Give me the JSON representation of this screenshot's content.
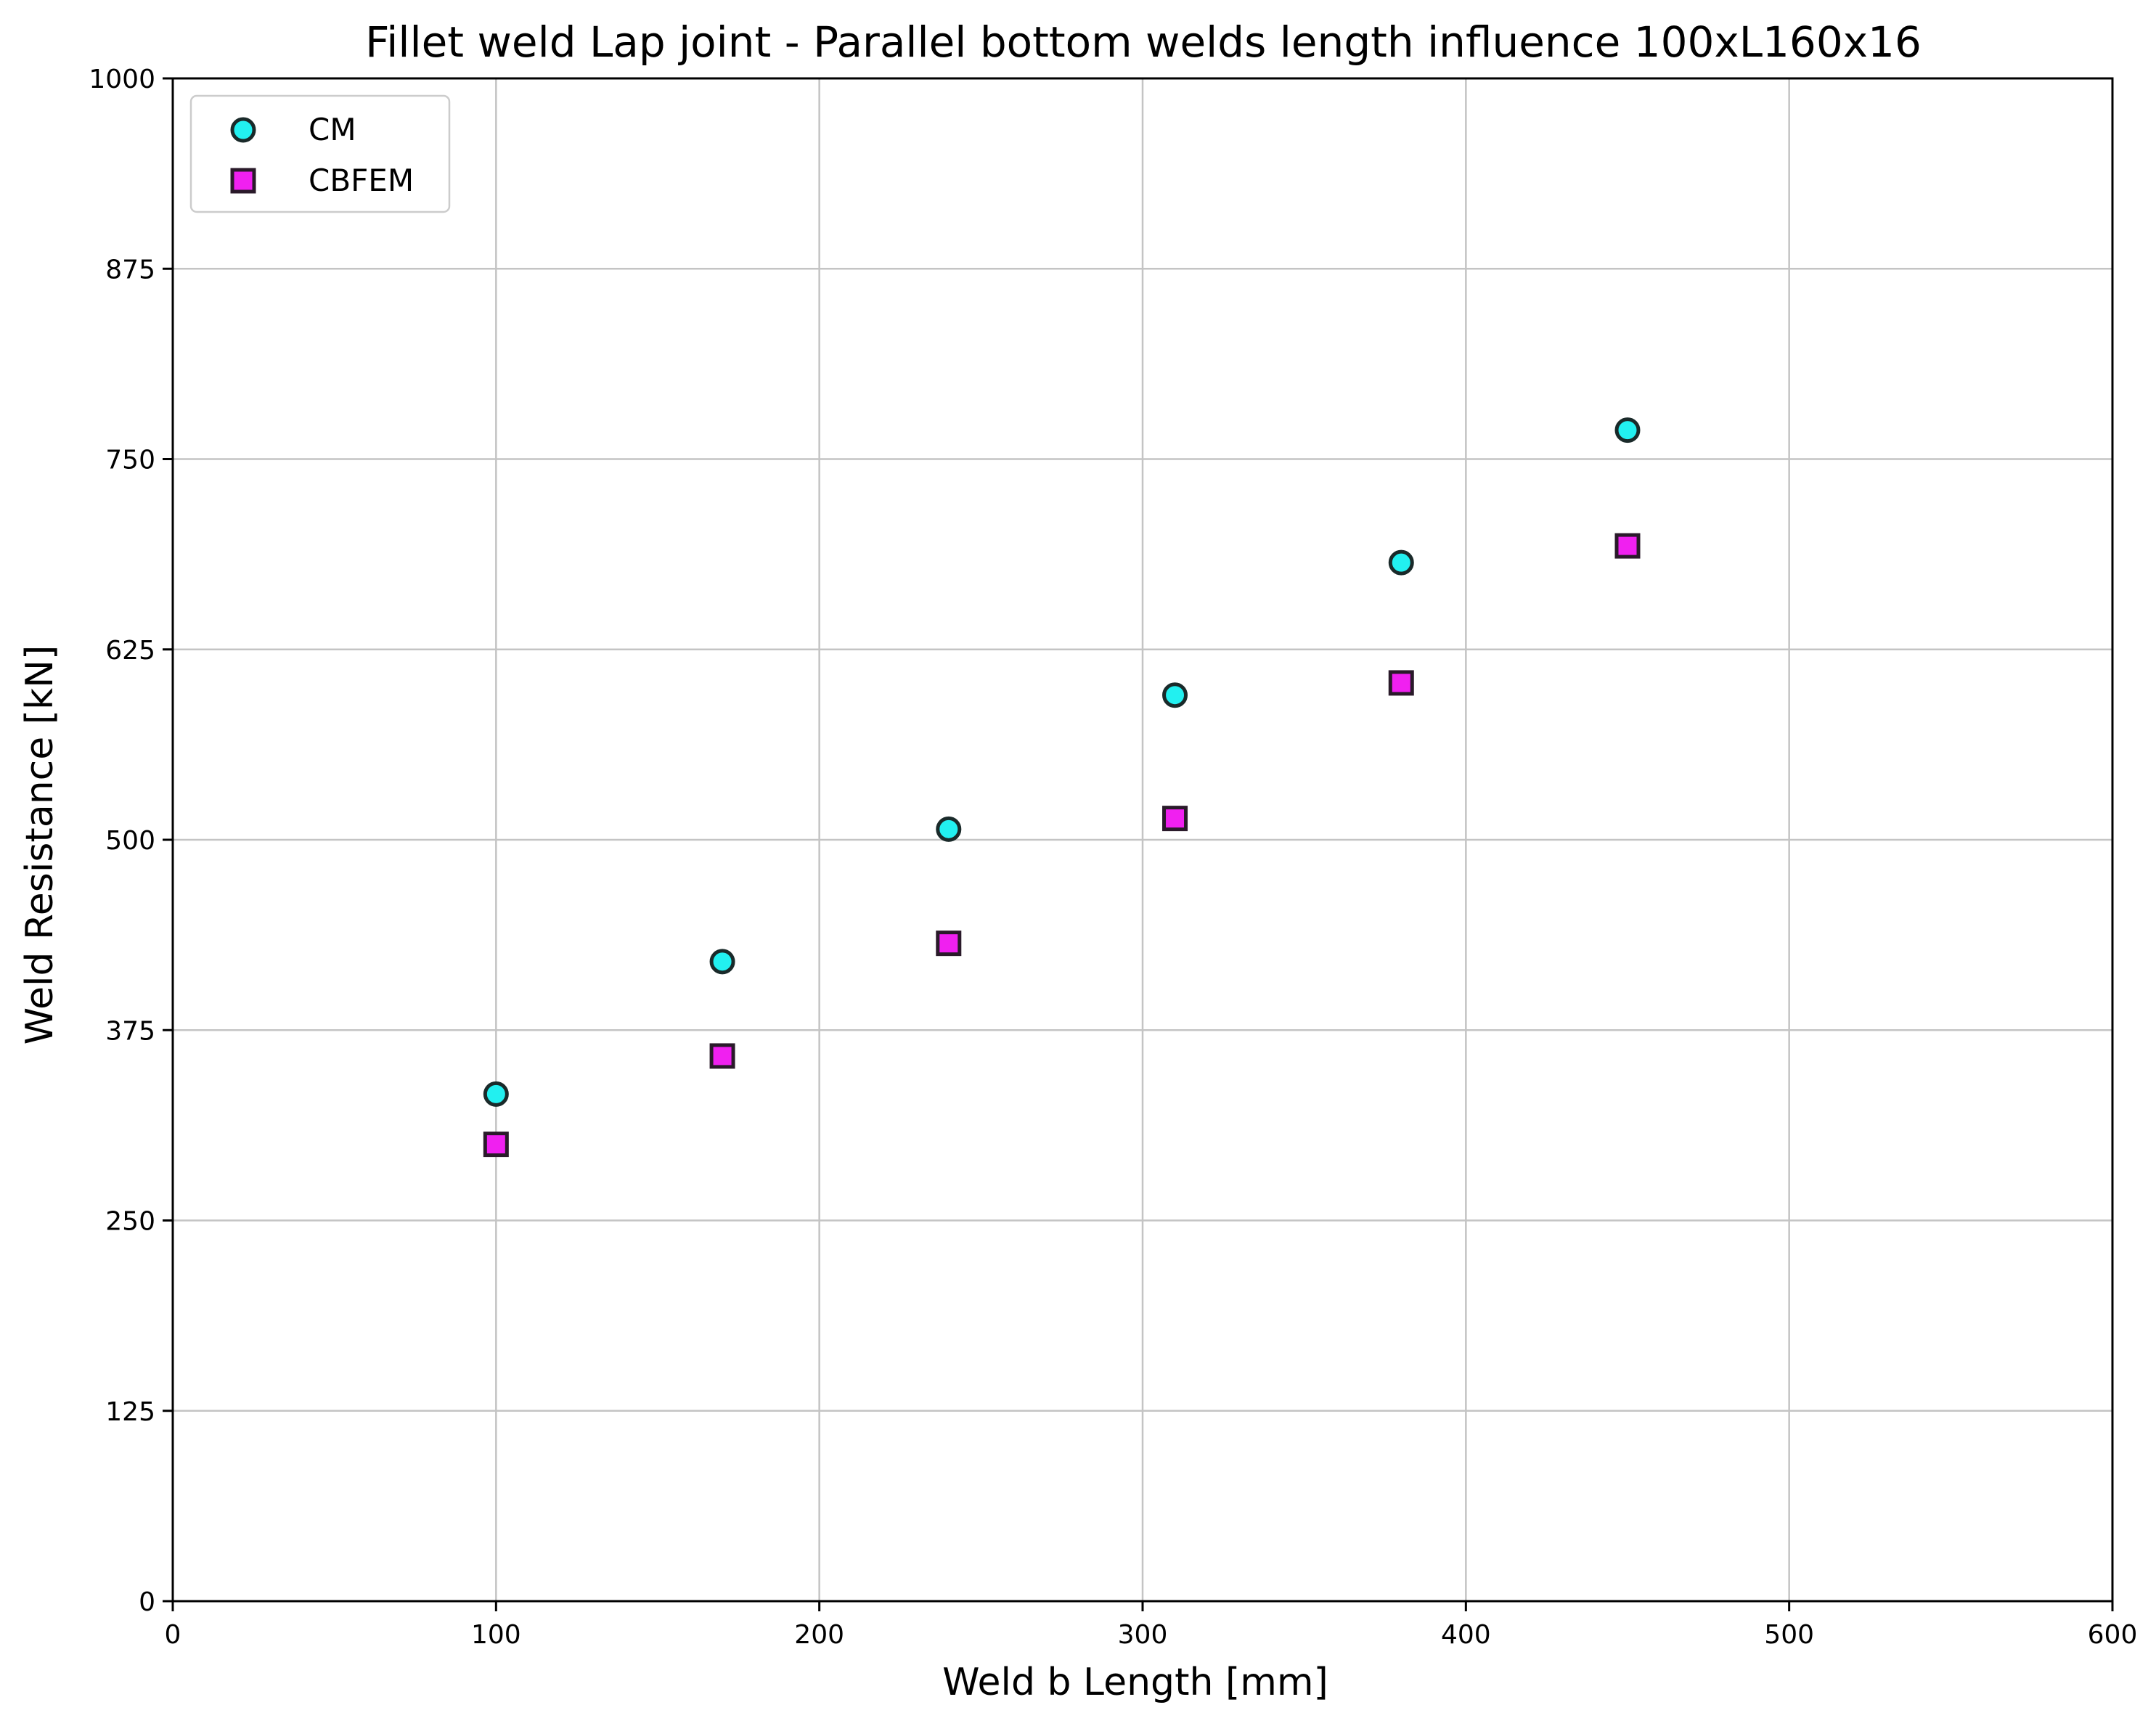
{
  "chart_data": {
    "type": "scatter",
    "title": "Fillet weld Lap joint - Parallel bottom welds length influence 100xL160x16",
    "xlabel": "Weld b Length [mm]",
    "ylabel": "Weld Resistance [kN]",
    "xlim": [
      0,
      600
    ],
    "ylim": [
      0,
      1000
    ],
    "xticks": [
      0,
      100,
      200,
      300,
      400,
      500,
      600
    ],
    "yticks": [
      0,
      125,
      250,
      375,
      500,
      625,
      750,
      875,
      1000
    ],
    "xtick_labels": [
      "0",
      "100",
      "200",
      "300",
      "400",
      "500",
      "600"
    ],
    "ytick_labels": [
      "0",
      "125",
      "250",
      "375",
      "500",
      "625",
      "750",
      "875",
      "1000"
    ],
    "grid": true,
    "legend_position": "top-left",
    "series": [
      {
        "name": "CM",
        "marker": "circle",
        "color": "#22f0f0",
        "edgecolor": "#1a2a2a",
        "x": [
          100,
          170,
          240,
          310,
          380,
          450
        ],
        "y": [
          333,
          420,
          507,
          595,
          682,
          769
        ]
      },
      {
        "name": "CBFEM",
        "marker": "square",
        "color": "#f020f0",
        "edgecolor": "#2a1a2a",
        "x": [
          100,
          170,
          240,
          310,
          380,
          450
        ],
        "y": [
          300,
          358,
          432,
          514,
          603,
          693
        ]
      }
    ]
  }
}
